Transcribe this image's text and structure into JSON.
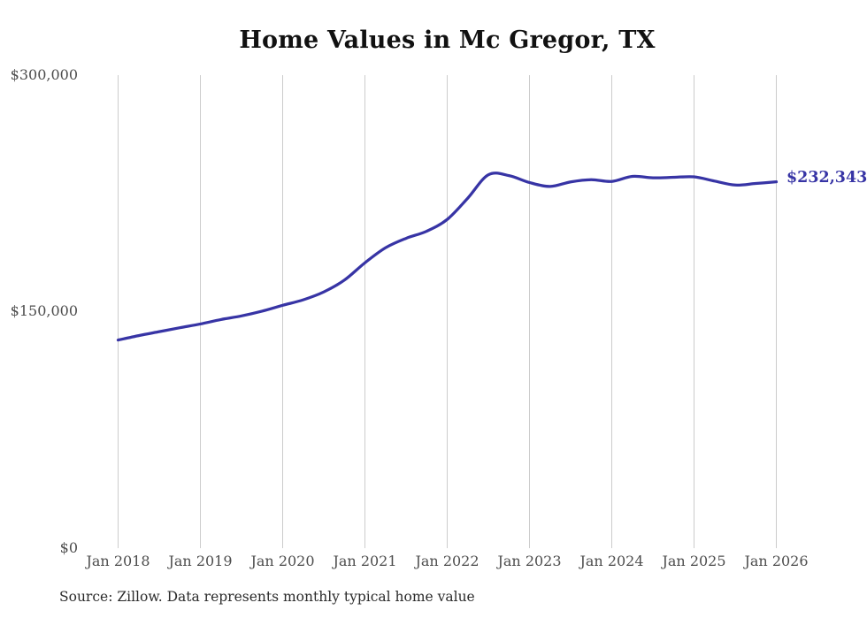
{
  "title": "Home Values in Mc Gregor, TX",
  "source_note": "Source: Zillow. Data represents monthly typical home value",
  "colors": {
    "line": "#3734a5",
    "grid": "#cccccc",
    "axis_text": "#4d4d4d",
    "title_text": "#111111"
  },
  "y_axis": {
    "ticks": [
      "$300,000",
      "$150,000",
      "$0"
    ]
  },
  "x_axis": {
    "ticks": [
      "Jan 2018",
      "Jan 2019",
      "Jan 2020",
      "Jan 2021",
      "Jan 2022",
      "Jan 2023",
      "Jan 2024",
      "Jan 2025",
      "Jan 2026"
    ]
  },
  "end_label": "$232,343",
  "chart_data": {
    "type": "line",
    "title": "Home Values in Mc Gregor, TX",
    "xlabel": "",
    "ylabel": "",
    "unit": "USD",
    "ylim": [
      0,
      300000
    ],
    "y_tick_values": [
      0,
      150000,
      300000
    ],
    "grid": "vertical-only",
    "legend": "none",
    "end_value": 232343,
    "end_value_label": "$232,343",
    "x": [
      "Jan 2018",
      "Apr 2018",
      "Jul 2018",
      "Oct 2018",
      "Jan 2019",
      "Apr 2019",
      "Jul 2019",
      "Oct 2019",
      "Jan 2020",
      "Apr 2020",
      "Jul 2020",
      "Oct 2020",
      "Jan 2021",
      "Apr 2021",
      "Jul 2021",
      "Oct 2021",
      "Jan 2022",
      "Apr 2022",
      "Jul 2022",
      "Oct 2022",
      "Jan 2023",
      "Apr 2023",
      "Jul 2023",
      "Oct 2023",
      "Jan 2024",
      "Apr 2024",
      "Jul 2024",
      "Oct 2024",
      "Jan 2025",
      "Apr 2025",
      "Jul 2025",
      "Oct 2025",
      "Jan 2026"
    ],
    "values": [
      132000,
      134800,
      137300,
      139800,
      142200,
      145000,
      147300,
      150300,
      154000,
      157500,
      162500,
      170000,
      181000,
      190500,
      196500,
      201000,
      208500,
      222000,
      236800,
      236300,
      231900,
      229400,
      232300,
      233700,
      232600,
      235800,
      234900,
      235200,
      235500,
      232800,
      230300,
      231300,
      232343
    ]
  }
}
